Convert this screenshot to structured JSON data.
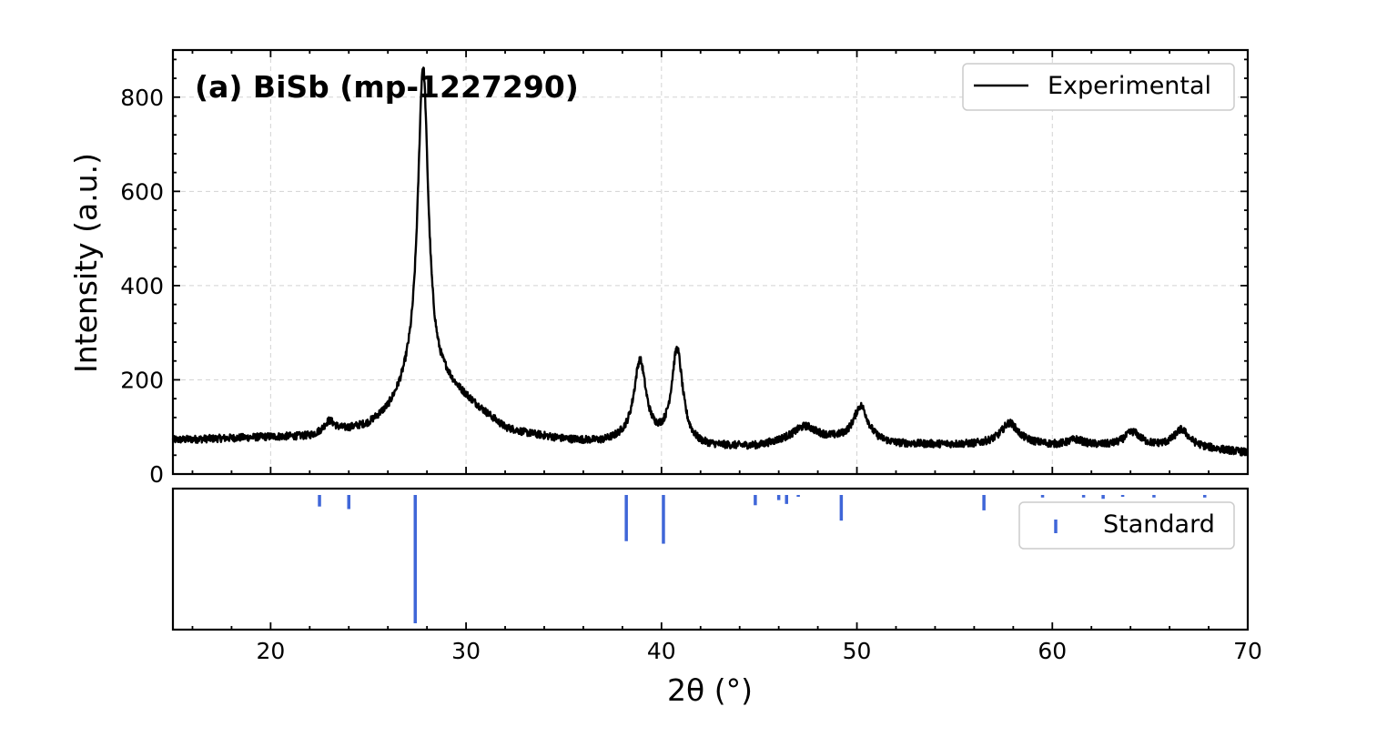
{
  "chart_data": {
    "type": "line",
    "title": "(a) BiSb (mp-1227290)",
    "xlabel": "2θ (°)",
    "ylabel": "Intensity (a.u.)",
    "xlim": [
      15,
      70
    ],
    "ylim": [
      0,
      900
    ],
    "x_ticks": [
      20,
      30,
      40,
      50,
      60,
      70
    ],
    "y_ticks": [
      0,
      200,
      400,
      600,
      800
    ],
    "grid": true,
    "legend": {
      "experimental": "Experimental",
      "standard": "Standard",
      "placement": "top-right"
    },
    "series": [
      {
        "name": "Experimental",
        "color": "#000000",
        "baseline": [
          [
            15,
            72
          ],
          [
            20,
            78
          ],
          [
            22,
            78
          ],
          [
            24,
            92
          ],
          [
            25,
            100
          ],
          [
            26,
            125
          ],
          [
            27,
            170
          ],
          [
            29,
            180
          ],
          [
            30,
            155
          ],
          [
            31,
            125
          ],
          [
            32,
            95
          ],
          [
            33,
            85
          ],
          [
            35,
            72
          ],
          [
            37,
            65
          ],
          [
            38,
            68
          ],
          [
            42,
            55
          ],
          [
            45,
            58
          ],
          [
            47,
            78
          ],
          [
            49,
            72
          ],
          [
            52,
            62
          ],
          [
            56,
            62
          ],
          [
            58,
            68
          ],
          [
            60,
            60
          ],
          [
            64,
            58
          ],
          [
            67,
            58
          ],
          [
            70,
            45
          ]
        ],
        "peaks": [
          {
            "x": 23.0,
            "height": 25,
            "width": 0.35
          },
          {
            "x": 27.8,
            "height": 690,
            "width": 0.33
          },
          {
            "x": 38.9,
            "height": 170,
            "width": 0.38
          },
          {
            "x": 40.8,
            "height": 200,
            "width": 0.35
          },
          {
            "x": 47.4,
            "height": 22,
            "width": 0.6
          },
          {
            "x": 50.2,
            "height": 75,
            "width": 0.45
          },
          {
            "x": 57.8,
            "height": 40,
            "width": 0.5
          },
          {
            "x": 61.2,
            "height": 12,
            "width": 0.5
          },
          {
            "x": 64.1,
            "height": 30,
            "width": 0.5
          },
          {
            "x": 66.6,
            "height": 35,
            "width": 0.45
          }
        ],
        "noise": 8
      },
      {
        "name": "Standard",
        "color": "#3f66d8",
        "type": "stick",
        "x": [
          22.5,
          24.0,
          27.4,
          38.2,
          40.1,
          44.8,
          46.0,
          46.4,
          47.0,
          49.2,
          56.5,
          59.5,
          61.6,
          62.6,
          63.6,
          65.2,
          67.8
        ],
        "intensity": [
          9,
          11,
          100,
          36,
          38,
          8,
          4,
          7,
          1,
          20,
          12,
          2,
          2,
          3,
          1,
          2,
          2
        ]
      }
    ]
  }
}
